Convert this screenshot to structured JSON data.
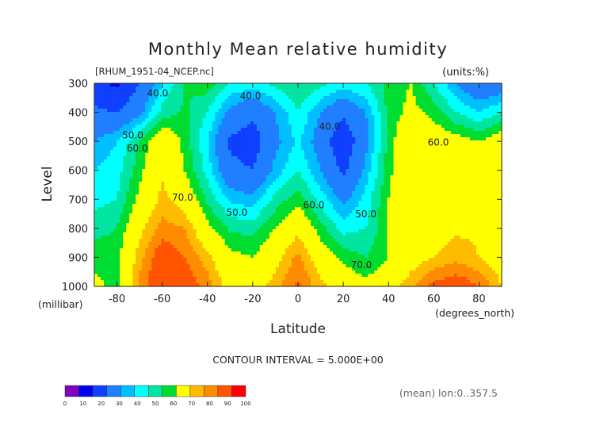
{
  "chart_data": {
    "type": "heatmap",
    "title": "Monthly Mean relative humidity",
    "dataset": "[RHUM_1951-04_NCEP.nc]",
    "units": "(units:%)",
    "ylabel": "Level",
    "y_unit": "(millibar)",
    "xlabel": "Latitude",
    "x_unit": "(degrees_north)",
    "x_ticks": [
      "-80",
      "-60",
      "-40",
      "-20",
      "0",
      "20",
      "40",
      "60",
      "80"
    ],
    "x_tick_values": [
      -80,
      -60,
      -40,
      -20,
      0,
      20,
      40,
      60,
      80
    ],
    "y_ticks": [
      "300",
      "400",
      "500",
      "600",
      "700",
      "800",
      "900",
      "1000"
    ],
    "y_tick_values": [
      300,
      400,
      500,
      600,
      700,
      800,
      900,
      1000
    ],
    "xlim": [
      -90,
      90
    ],
    "ylim": [
      1000,
      300
    ],
    "contour_interval_text": "CONTOUR INTERVAL = 5.000E+00",
    "footer_note": "(mean) lon:0..357.5",
    "colorbar": {
      "ticks": [
        "0",
        "10",
        "20",
        "30",
        "40",
        "50",
        "60",
        "70",
        "80",
        "90",
        "100"
      ],
      "colors": [
        "#7f00bf",
        "#0000ef",
        "#0f3fff",
        "#1f7fff",
        "#00bfff",
        "#00ffff",
        "#00e5a0",
        "#00dd30",
        "#ffff00",
        "#ffbb00",
        "#ff8c00",
        "#ff5500",
        "#ff0000"
      ]
    },
    "contour_labels": [
      {
        "text": "40.0",
        "lat": -62,
        "lev": 345
      },
      {
        "text": "40.0",
        "lat": -21,
        "lev": 355
      },
      {
        "text": "40.0",
        "lat": 14,
        "lev": 460
      },
      {
        "text": "50.0",
        "lat": -73,
        "lev": 490
      },
      {
        "text": "60.0",
        "lat": -71,
        "lev": 535
      },
      {
        "text": "60.0",
        "lat": 62,
        "lev": 515
      },
      {
        "text": "70.0",
        "lat": -51,
        "lev": 705
      },
      {
        "text": "50.0",
        "lat": -27,
        "lev": 757
      },
      {
        "text": "60.0",
        "lat": 7,
        "lev": 730
      },
      {
        "text": "50.0",
        "lat": 30,
        "lev": 762
      },
      {
        "text": "70.0",
        "lat": 28,
        "lev": 937
      }
    ],
    "field": {
      "lat": [
        -90,
        -80,
        -70,
        -60,
        -50,
        -40,
        -30,
        -20,
        -10,
        0,
        10,
        20,
        30,
        40,
        50,
        60,
        70,
        80,
        90
      ],
      "lev": [
        300,
        400,
        500,
        600,
        700,
        800,
        900,
        1000
      ],
      "values": [
        [
          22,
          18,
          30,
          45,
          55,
          58,
          50,
          48,
          52,
          55,
          52,
          48,
          50,
          57,
          60,
          50,
          40,
          32,
          35
        ],
        [
          32,
          30,
          38,
          52,
          56,
          50,
          38,
          32,
          40,
          50,
          40,
          32,
          40,
          57,
          62,
          58,
          50,
          45,
          50
        ],
        [
          40,
          45,
          55,
          68,
          58,
          45,
          28,
          25,
          38,
          46,
          36,
          22,
          38,
          57,
          68,
          65,
          63,
          60,
          65
        ],
        [
          45,
          48,
          58,
          69,
          60,
          48,
          33,
          30,
          42,
          50,
          40,
          28,
          42,
          58,
          70,
          66,
          66,
          65,
          66
        ],
        [
          48,
          50,
          62,
          72,
          66,
          54,
          44,
          42,
          52,
          58,
          48,
          38,
          47,
          60,
          67,
          67,
          68,
          68,
          68
        ],
        [
          53,
          55,
          68,
          77,
          75,
          62,
          54,
          53,
          60,
          68,
          57,
          48,
          50,
          60,
          65,
          66,
          69,
          69,
          67
        ],
        [
          58,
          58,
          73,
          85,
          80,
          72,
          62,
          60,
          67,
          77,
          65,
          58,
          55,
          60,
          66,
          70,
          73,
          70,
          66
        ],
        [
          62,
          58,
          76,
          89,
          84,
          78,
          66,
          65,
          73,
          81,
          72,
          66,
          62,
          66,
          74,
          82,
          85,
          80,
          70
        ]
      ]
    }
  }
}
